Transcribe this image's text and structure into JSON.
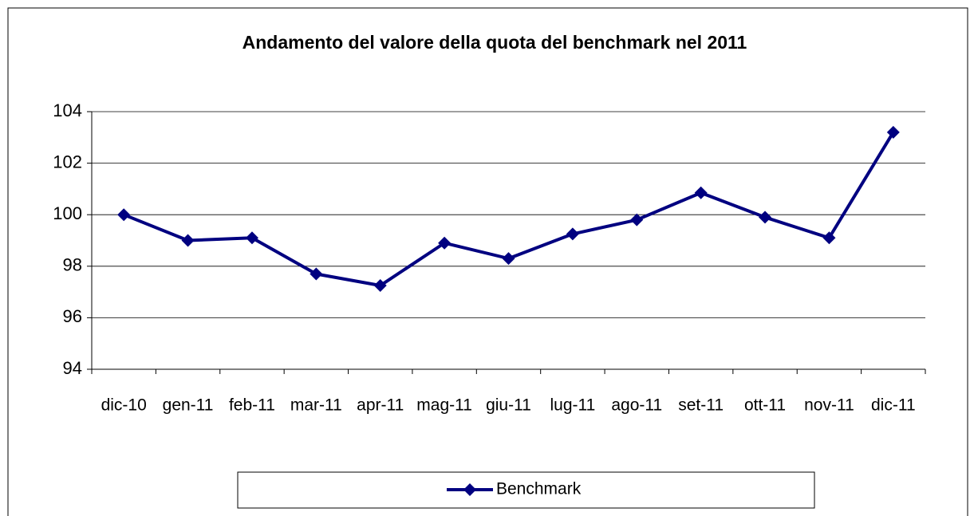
{
  "chart_data": {
    "type": "line",
    "title": "Andamento del valore della quota del benchmark nel 2011",
    "categories": [
      "dic-10",
      "gen-11",
      "feb-11",
      "mar-11",
      "apr-11",
      "mag-11",
      "giu-11",
      "lug-11",
      "ago-11",
      "set-11",
      "ott-11",
      "nov-11",
      "dic-11"
    ],
    "series": [
      {
        "name": "Benchmark",
        "color": "#000080",
        "values": [
          100,
          99.0,
          99.1,
          97.7,
          97.25,
          98.9,
          98.3,
          99.25,
          99.8,
          100.85,
          99.9,
          99.1,
          103.2
        ]
      }
    ],
    "ylim": [
      94,
      104
    ],
    "yticks": [
      94,
      96,
      98,
      100,
      102,
      104
    ],
    "grid": true,
    "legend": "bottom"
  }
}
